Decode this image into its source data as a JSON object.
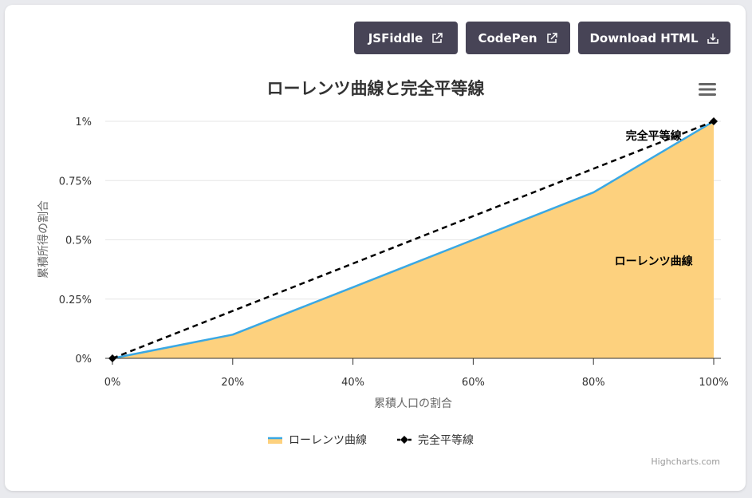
{
  "toolbar": {
    "jsfiddle_label": "JSFiddle",
    "codepen_label": "CodePen",
    "download_label": "Download HTML",
    "button_color": "#474456"
  },
  "chart_data": {
    "type": "area",
    "title": "ローレンツ曲線と完全平等線",
    "xlabel": "累積人口の割合",
    "ylabel": "累積所得の割合",
    "x": [
      0,
      20,
      40,
      60,
      80,
      100
    ],
    "x_tick_labels": [
      "0%",
      "20%",
      "40%",
      "60%",
      "80%",
      "100%"
    ],
    "y_ticks": [
      0,
      0.25,
      0.5,
      0.75,
      1
    ],
    "y_tick_labels": [
      "0%",
      "0.25%",
      "0.5%",
      "0.75%",
      "1%"
    ],
    "xlim": [
      0,
      100
    ],
    "ylim": [
      0,
      1
    ],
    "grid": true,
    "legend_position": "bottom-center",
    "series": [
      {
        "name": "ローレンツ曲線",
        "type": "area",
        "x": [
          0,
          20,
          40,
          60,
          80,
          100
        ],
        "values": [
          0,
          0.1,
          0.3,
          0.5,
          0.7,
          1
        ],
        "line_color": "#3aa8e4",
        "fill_color": "#fdd17e"
      },
      {
        "name": "完全平等線",
        "type": "line",
        "dash": true,
        "x": [
          0,
          100
        ],
        "values": [
          0,
          1
        ],
        "line_color": "#000000"
      }
    ],
    "annotations": [
      {
        "text": "完全平等線",
        "x": 90,
        "y": 0.94
      },
      {
        "text": "ローレンツ曲線",
        "x": 90,
        "y": 0.41
      }
    ],
    "credits": "Highcharts.com"
  }
}
